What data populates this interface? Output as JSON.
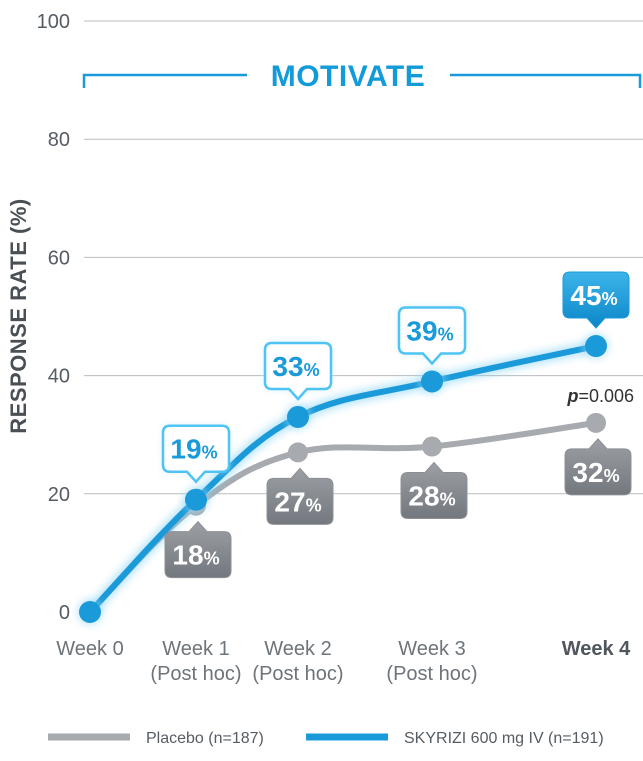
{
  "chart_data": {
    "type": "line",
    "title": "MOTIVATE",
    "ylabel": "RESPONSE RATE (%)",
    "xlabel": "",
    "ylim": [
      0,
      100
    ],
    "yticks": [
      0,
      20,
      40,
      60,
      80,
      100
    ],
    "grid": true,
    "categories": [
      {
        "line1": "Week 0",
        "line2": ""
      },
      {
        "line1": "Week 1",
        "line2": "(Post hoc)"
      },
      {
        "line1": "Week 2",
        "line2": "(Post hoc)"
      },
      {
        "line1": "Week 3",
        "line2": "(Post hoc)"
      },
      {
        "line1": "Week 4",
        "line2": ""
      }
    ],
    "series": [
      {
        "name": "Placebo (n=187)",
        "color": "#a7aaae",
        "values": [
          0,
          18,
          27,
          28,
          32
        ]
      },
      {
        "name": "SKYRIZI 600 mg IV (n=191)",
        "color": "#1a9ad9",
        "values": [
          0,
          19,
          33,
          39,
          45
        ]
      }
    ],
    "annotation": {
      "p_label": "p",
      "p_value": "=0.006"
    },
    "pct_sign": "%"
  }
}
